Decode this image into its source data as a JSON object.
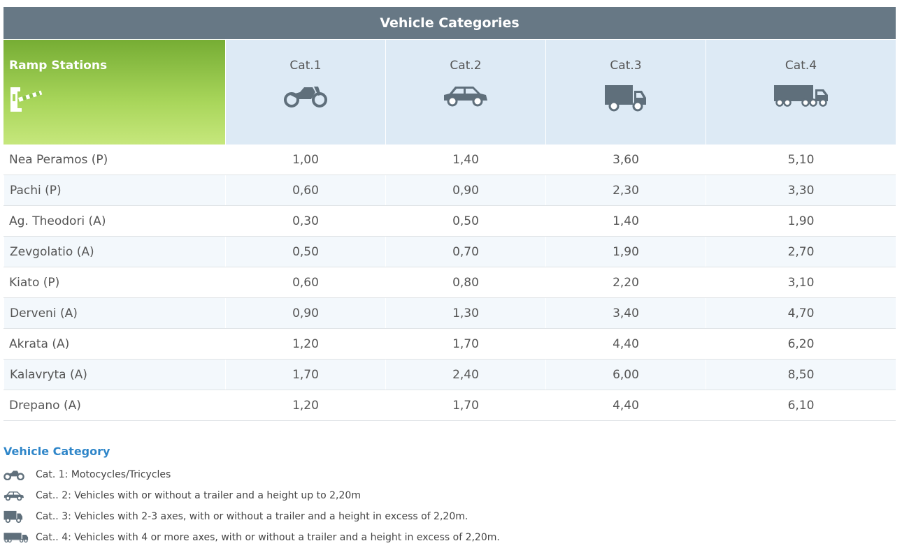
{
  "table": {
    "title": "Vehicle Categories",
    "ramp_header": "Ramp Stations",
    "ramp_icon": "toll-barrier-icon",
    "categories": [
      {
        "label": "Cat.1",
        "icon": "motorcycle-icon"
      },
      {
        "label": "Cat.2",
        "icon": "car-icon"
      },
      {
        "label": "Cat.3",
        "icon": "truck-icon"
      },
      {
        "label": "Cat.4",
        "icon": "trailer-truck-icon"
      }
    ],
    "rows": [
      {
        "station": "Nea Peramos (P)",
        "values": [
          "1,00",
          "1,40",
          "3,60",
          "5,10"
        ]
      },
      {
        "station": "Pachi (P)",
        "values": [
          "0,60",
          "0,90",
          "2,30",
          "3,30"
        ]
      },
      {
        "station": "Ag. Theodori (A)",
        "values": [
          "0,30",
          "0,50",
          "1,40",
          "1,90"
        ]
      },
      {
        "station": "Zevgolatio (A)",
        "values": [
          "0,50",
          "0,70",
          "1,90",
          "2,70"
        ]
      },
      {
        "station": "Kiato (P)",
        "values": [
          "0,60",
          "0,80",
          "2,20",
          "3,10"
        ]
      },
      {
        "station": "Derveni (A)",
        "values": [
          "0,90",
          "1,30",
          "3,40",
          "4,70"
        ]
      },
      {
        "station": "Akrata (A)",
        "values": [
          "1,20",
          "1,70",
          "4,40",
          "6,20"
        ]
      },
      {
        "station": "Kalavryta (A)",
        "values": [
          "1,70",
          "2,40",
          "6,00",
          "8,50"
        ]
      },
      {
        "station": "Drepano (A)",
        "values": [
          "1,20",
          "1,70",
          "4,40",
          "6,10"
        ]
      }
    ]
  },
  "legend": {
    "title": "Vehicle Category",
    "items": [
      {
        "icon": "motorcycle-icon",
        "text": "Cat. 1: Motocycles/Tricycles"
      },
      {
        "icon": "car-icon",
        "text": "Cat.. 2: Vehicles with or without a trailer and a height up to 2,20m"
      },
      {
        "icon": "truck-icon",
        "text": "Cat.. 3: Vehicles with 2-3 axes, with or without a trailer and a height in excess of 2,20m."
      },
      {
        "icon": "trailer-truck-icon",
        "text": "Cat.. 4: Vehicles with 4 or more axes, with or without a trailer and a height in excess of 2,20m."
      }
    ]
  },
  "colors": {
    "title_bar": "#677885",
    "ramp_header_green": "#76ad34",
    "category_header": "#ddeaf5",
    "alt_row": "#f3f8fc",
    "legend_title": "#2f86c9",
    "icon_gray": "#5f6f7b"
  }
}
